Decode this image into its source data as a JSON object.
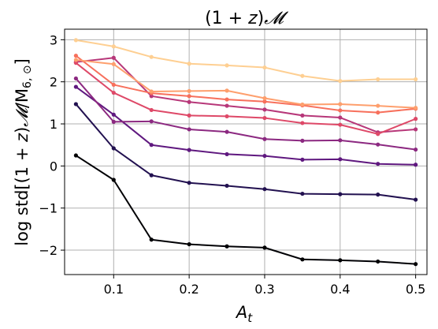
{
  "chart_data": {
    "type": "line",
    "title": "(1 + z)𝓜",
    "xlabel": "A_t",
    "ylabel": "log std[(1 + z)𝓜/M₆,⊙]",
    "xlim": [
      0.035,
      0.515
    ],
    "ylim": [
      -2.58,
      3.25
    ],
    "xticks": [
      0.1,
      0.2,
      0.3,
      0.4,
      0.5
    ],
    "yticks": [
      -2,
      -1,
      0,
      1,
      2,
      3
    ],
    "xtick_labels": [
      "0.1",
      "0.2",
      "0.3",
      "0.4",
      "0.5"
    ],
    "ytick_labels": [
      "−2",
      "−1",
      "0",
      "1",
      "2",
      "3"
    ],
    "grid": true,
    "x": [
      0.05,
      0.1,
      0.15,
      0.2,
      0.25,
      0.3,
      0.35,
      0.4,
      0.45,
      0.5
    ],
    "series": [
      {
        "color": "#000004",
        "values": [
          0.25,
          -0.33,
          -1.75,
          -1.86,
          -1.91,
          -1.94,
          -2.22,
          -2.24,
          -2.27,
          -2.33
        ]
      },
      {
        "color": "#221150",
        "values": [
          1.47,
          0.42,
          -0.22,
          -0.4,
          -0.47,
          -0.55,
          -0.66,
          -0.67,
          -0.68,
          -0.8
        ]
      },
      {
        "color": "#5f187f",
        "values": [
          1.88,
          1.22,
          0.5,
          0.38,
          0.28,
          0.24,
          0.15,
          0.16,
          0.05,
          0.03
        ]
      },
      {
        "color": "#8c2981",
        "values": [
          2.08,
          1.05,
          1.06,
          0.87,
          0.81,
          0.64,
          0.6,
          0.61,
          0.51,
          0.39
        ]
      },
      {
        "color": "#b73779",
        "values": [
          2.47,
          2.57,
          1.66,
          1.52,
          1.43,
          1.34,
          1.2,
          1.15,
          0.8,
          0.87
        ]
      },
      {
        "color": "#de4968",
        "values": [
          2.45,
          1.74,
          1.33,
          1.2,
          1.18,
          1.14,
          1.02,
          0.98,
          0.76,
          1.12
        ]
      },
      {
        "color": "#f7705c",
        "values": [
          2.62,
          1.93,
          1.73,
          1.66,
          1.58,
          1.53,
          1.44,
          1.32,
          1.27,
          1.36
        ]
      },
      {
        "color": "#fe9f6d",
        "values": [
          2.52,
          2.42,
          1.77,
          1.78,
          1.79,
          1.61,
          1.46,
          1.47,
          1.43,
          1.38
        ]
      },
      {
        "color": "#fecf92",
        "values": [
          2.99,
          2.84,
          2.59,
          2.43,
          2.39,
          2.34,
          2.14,
          2.02,
          2.06,
          2.06
        ]
      }
    ]
  }
}
